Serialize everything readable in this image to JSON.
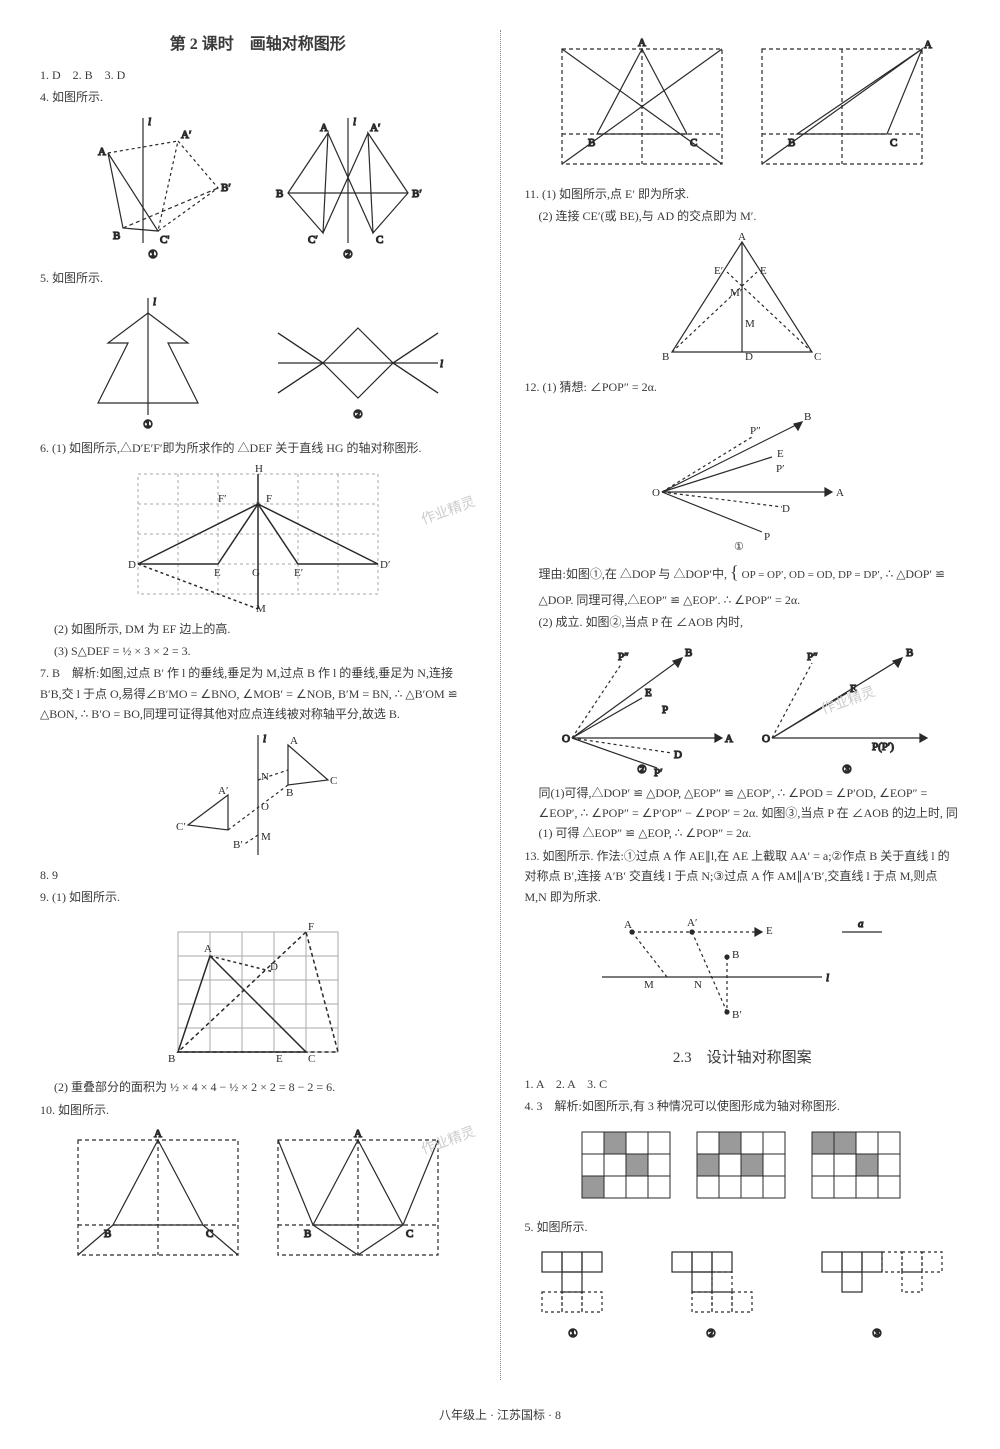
{
  "colors": {
    "text": "#3a3a3a",
    "stroke": "#2a2a2a",
    "dashed": "#3a3a3a",
    "grid": "#888888",
    "lightgray": "#aaaaaa",
    "fillgray": "#9a9a9a",
    "bg": "#ffffff",
    "watermark": "#cccccc"
  },
  "fonts": {
    "body_size": 12,
    "title_size": 16,
    "label_size": 10
  },
  "header_title": "第 2 课时　画轴对称图形",
  "left": {
    "q1": "1. D　2. B　3. D",
    "q4": "4. 如图所示.",
    "fig4": {
      "labels1": {
        "l": "l",
        "A": "A",
        "A1": "A′",
        "B": "B",
        "B1": "B′",
        "C": "C'",
        "num": "①"
      },
      "labels2": {
        "l": "l",
        "A": "A",
        "A1": "A′",
        "B": "B",
        "B1": "B′",
        "C": "C′",
        "C2": "C",
        "num": "②"
      }
    },
    "q5": "5. 如图所示.",
    "fig5": {
      "l": "l",
      "num1": "①",
      "num2": "②"
    },
    "q6a": "6. (1) 如图所示,△D′E′F′即为所求作的 △DEF 关于直线 HG 的轴对称图形.",
    "fig6": {
      "H": "H",
      "G": "G",
      "M": "M",
      "D": "D",
      "E": "E",
      "F": "F",
      "D1": "D′",
      "E1": "E′",
      "F1": "F′"
    },
    "q6b": "(2) 如图所示, DM 为 EF 边上的高.",
    "q6c": "(3) S△DEF = ½ × 3 × 2 = 3.",
    "q7": "7. B　解析:如图,过点 B′ 作 l 的垂线,垂足为 M,过点 B 作 l 的垂线,垂足为 N,连接 B′B,交 l 于点 O,易得∠B′MO = ∠BNO, ∠MOB′ = ∠NOB, B′M = BN, ∴ △B′OM ≌ △BON, ∴ B′O = BO,同理可证得其他对应点连线被对称轴平分,故选 B.",
    "fig7": {
      "l": "l",
      "A": "A",
      "B": "B",
      "C": "C",
      "A1": "A′",
      "B1": "B′",
      "C1": "C′",
      "N": "N",
      "M": "M",
      "O": "O"
    },
    "q8": "8. 9",
    "q9a": "9. (1) 如图所示.",
    "fig9": {
      "A": "A",
      "B": "B",
      "C": "C",
      "D": "D",
      "E": "E",
      "F": "F"
    },
    "q9b": "(2) 重叠部分的面积为 ½ × 4 × 4 − ½ × 2 × 2 = 8 − 2 = 6.",
    "q10": "10. 如图所示.",
    "fig10": {
      "A": "A",
      "B": "B",
      "C": "C"
    }
  },
  "right": {
    "fig10b": {
      "A": "A",
      "B": "B",
      "C": "C"
    },
    "q11a": "11. (1) 如图所示,点 E′ 即为所求.",
    "q11b": "(2) 连接 CE′(或 BE),与 AD 的交点即为 M′.",
    "fig11": {
      "A": "A",
      "B": "B",
      "C": "C",
      "D": "D",
      "E": "E",
      "E1": "E′",
      "M": "M",
      "M1": "M′"
    },
    "q12a": "12. (1) 猜想: ∠POP″ = 2α.",
    "fig12a": {
      "O": "O",
      "A": "A",
      "B": "B",
      "D": "D",
      "E": "E",
      "P": "P",
      "P1": "P′",
      "P2": "P″",
      "num": "①"
    },
    "q12b_pre": "理由:如图①,在 △DOP 与 △DOP′中,",
    "q12b_brace": "OP = OP′, OD = OD, DP = DP′,",
    "q12b_post": "∴ △DOP′ ≌",
    "q12c": "△DOP. 同理可得,△EOP″ ≌ △EOP′. ∴ ∠POP″ = 2α.",
    "q12d": "(2) 成立. 如图②,当点 P 在 ∠AOB 内时,",
    "fig12b": {
      "O": "O",
      "A": "A",
      "B": "B",
      "D": "D",
      "E": "E",
      "P": "P",
      "P1": "P′",
      "P2": "P″",
      "num2": "②",
      "num3": "③",
      "PP": "P(P′)"
    },
    "q12e": "同(1)可得,△DOP′ ≌ △DOP, △EOP″ ≌ △EOP′, ∴ ∠POD = ∠P′OD, ∠EOP″ = ∠EOP′, ∴ ∠POP″ = ∠P′OP″ − ∠POP′ = 2α. 如图③,当点 P 在 ∠AOB 的边上时, 同 (1) 可得 △EOP″ ≌ △EOP, ∴ ∠POP″ = 2α.",
    "q13": "13. 如图所示. 作法:①过点 A 作 AE∥l,在 AE 上截取 AA′ = a;②作点 B 关于直线 l 的对称点 B′,连接 A′B′ 交直线 l 于点 N;③过点 A 作 AM∥A′B′,交直线 l 于点 M,则点 M,N 即为所求.",
    "fig13": {
      "A": "A",
      "A1": "A′",
      "B": "B",
      "B1": "B′",
      "E": "E",
      "M": "M",
      "N": "N",
      "l": "l",
      "a": "a"
    },
    "sec23": "2.3　设计轴对称图案",
    "s23_q1": "1. A　2. A　3. C",
    "s23_q4": "4. 3　解析:如图所示,有 3 种情况可以使图形成为轴对称图形.",
    "grid4": {
      "rows": 3,
      "cols": 12,
      "cell": 22,
      "fill_cells": [
        [
          0,
          1
        ],
        [
          0,
          5
        ],
        [
          0,
          9
        ],
        [
          1,
          2
        ],
        [
          1,
          6
        ],
        [
          1,
          10
        ],
        [
          2,
          0
        ],
        [
          1,
          4
        ],
        [
          0,
          8
        ]
      ]
    },
    "s23_q5": "5. 如图所示.",
    "fig_s5": {
      "num1": "①",
      "num2": "②",
      "num3": "③"
    }
  },
  "footer": "八年级上 · 江苏国标 · 8",
  "watermarks": [
    "作业精灵",
    "作业精灵",
    "作业精灵"
  ]
}
